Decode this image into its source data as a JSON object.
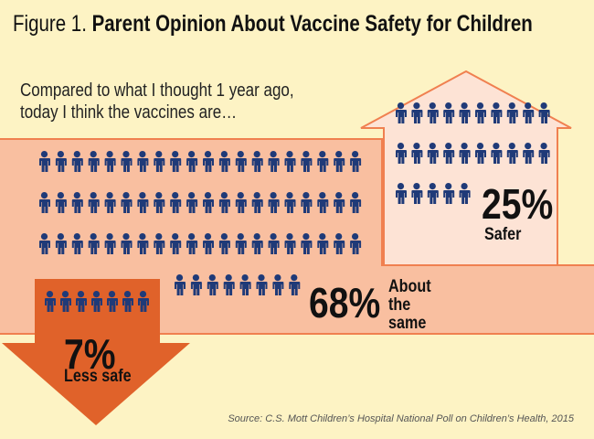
{
  "chart_data": {
    "type": "pictograph",
    "title_prefix": "Figure 1.",
    "title": "Parent Opinion About Vaccine Safety for Children",
    "subtitle": [
      "Compared to what I thought 1 year ago,",
      "today I think the vaccines are…"
    ],
    "categories": [
      "Safer",
      "About the same",
      "Less safe"
    ],
    "values": [
      25,
      68,
      7
    ],
    "value_labels": [
      "25%",
      "68%",
      "7%"
    ],
    "color": "#1f3a78",
    "source": "Source: C.S. Mott Children’s Hospital National Poll on Children’s Health, 2015"
  }
}
